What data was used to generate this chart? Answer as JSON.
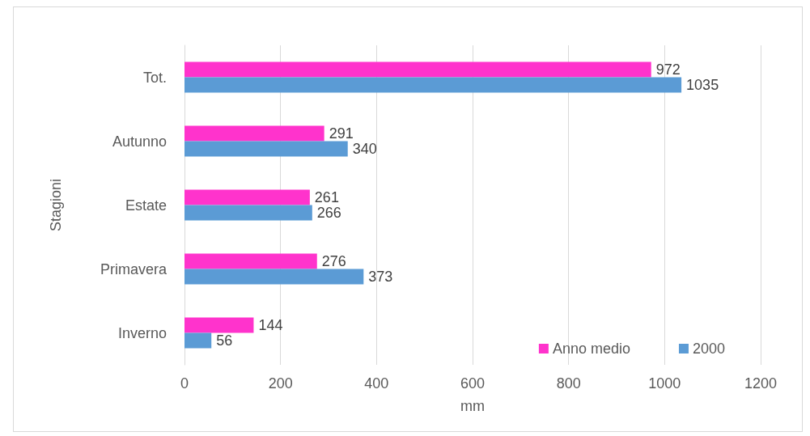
{
  "chart_data": {
    "type": "bar",
    "orientation": "horizontal",
    "xlabel": "mm",
    "ylabel": "Stagioni",
    "categories": [
      "Tot.",
      "Autunno",
      "Estate",
      "Primavera",
      "Inverno"
    ],
    "series": [
      {
        "name": "Anno medio",
        "color": "#ff33cc",
        "values": [
          972,
          291,
          261,
          276,
          144
        ]
      },
      {
        "name": "2000",
        "color": "#5b9bd5",
        "values": [
          1035,
          340,
          266,
          373,
          56
        ]
      }
    ],
    "xlim": [
      0,
      1200
    ],
    "xticks": [
      0,
      200,
      400,
      600,
      800,
      1000,
      1200
    ],
    "grid": "x",
    "legend": "bottom right",
    "data_labels": true
  }
}
